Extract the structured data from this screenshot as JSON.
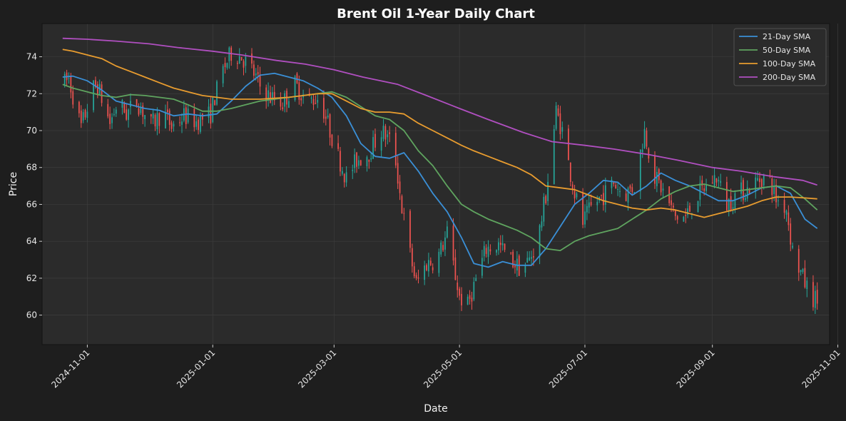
{
  "chart_data": {
    "type": "line",
    "title": "Brent Oil 1-Year Daily Chart",
    "xlabel": "Date",
    "ylabel": "Price",
    "x_range": [
      "2024-10-10",
      "2025-10-28"
    ],
    "ylim": [
      58.4,
      75.8
    ],
    "y_ticks": [
      60,
      62,
      64,
      66,
      68,
      70,
      72,
      74
    ],
    "x_ticks": [
      "2024-11-01",
      "2025-01-01",
      "2025-03-01",
      "2025-05-01",
      "2025-07-01",
      "2025-09-01",
      "2025-11-01"
    ],
    "grid": true,
    "legend_position": "top-right",
    "candlestick": {
      "up_color": "#26a69a",
      "down_color": "#ef5350",
      "anchors": [
        [
          "2024-10-21",
          72.6
        ],
        [
          "2024-10-23",
          72.8
        ],
        [
          "2024-10-27",
          71.0
        ],
        [
          "2024-10-29",
          70.2
        ],
        [
          "2024-11-04",
          72.3
        ],
        [
          "2024-11-06",
          72.4
        ],
        [
          "2024-11-12",
          70.4
        ],
        [
          "2024-11-16",
          71.6
        ],
        [
          "2024-11-20",
          70.9
        ],
        [
          "2024-11-25",
          71.6
        ],
        [
          "2024-12-02",
          70.3
        ],
        [
          "2024-12-08",
          71.0
        ],
        [
          "2024-12-12",
          70.2
        ],
        [
          "2024-12-18",
          70.8
        ],
        [
          "2024-12-24",
          70.5
        ],
        [
          "2024-12-31",
          70.9
        ],
        [
          "2025-01-02",
          71.8
        ],
        [
          "2025-01-06",
          73.3
        ],
        [
          "2025-01-10",
          74.2
        ],
        [
          "2025-01-15",
          74.0
        ],
        [
          "2025-01-20",
          73.3
        ],
        [
          "2025-01-24",
          72.4
        ],
        [
          "2025-01-29",
          71.8
        ],
        [
          "2025-02-04",
          71.5
        ],
        [
          "2025-02-10",
          72.5
        ],
        [
          "2025-02-16",
          71.6
        ],
        [
          "2025-02-22",
          71.8
        ],
        [
          "2025-02-27",
          70.0
        ],
        [
          "2025-03-03",
          68.6
        ],
        [
          "2025-03-07",
          67.4
        ],
        [
          "2025-03-12",
          68.4
        ],
        [
          "2025-03-18",
          68.8
        ],
        [
          "2025-03-24",
          70.0
        ],
        [
          "2025-03-30",
          69.2
        ],
        [
          "2025-04-03",
          65.8
        ],
        [
          "2025-04-07",
          63.3
        ],
        [
          "2025-04-10",
          61.7
        ],
        [
          "2025-04-15",
          62.8
        ],
        [
          "2025-04-20",
          63.0
        ],
        [
          "2025-04-25",
          64.4
        ],
        [
          "2025-05-01",
          61.0
        ],
        [
          "2025-05-05",
          60.5
        ],
        [
          "2025-05-08",
          61.6
        ],
        [
          "2025-05-14",
          63.6
        ],
        [
          "2025-05-20",
          63.8
        ],
        [
          "2025-05-26",
          63.0
        ],
        [
          "2025-05-31",
          62.5
        ],
        [
          "2025-06-04",
          63.0
        ],
        [
          "2025-06-08",
          64.0
        ],
        [
          "2025-06-12",
          66.5
        ],
        [
          "2025-06-17",
          71.0
        ],
        [
          "2025-06-20",
          70.0
        ],
        [
          "2025-06-23",
          68.2
        ],
        [
          "2025-06-26",
          66.6
        ],
        [
          "2025-06-30",
          65.0
        ],
        [
          "2025-07-05",
          66.0
        ],
        [
          "2025-07-10",
          66.5
        ],
        [
          "2025-07-15",
          67.2
        ],
        [
          "2025-07-20",
          66.5
        ],
        [
          "2025-07-25",
          67.0
        ],
        [
          "2025-07-30",
          70.0
        ],
        [
          "2025-08-04",
          67.5
        ],
        [
          "2025-08-09",
          66.5
        ],
        [
          "2025-08-14",
          65.3
        ],
        [
          "2025-08-19",
          65.3
        ],
        [
          "2025-08-24",
          66.4
        ],
        [
          "2025-08-29",
          67.0
        ],
        [
          "2025-09-03",
          67.5
        ],
        [
          "2025-09-08",
          66.0
        ],
        [
          "2025-09-13",
          66.6
        ],
        [
          "2025-09-18",
          66.8
        ],
        [
          "2025-09-23",
          67.3
        ],
        [
          "2025-09-28",
          67.6
        ],
        [
          "2025-10-02",
          66.3
        ],
        [
          "2025-10-07",
          65.8
        ],
        [
          "2025-10-10",
          63.5
        ],
        [
          "2025-10-15",
          62.0
        ],
        [
          "2025-10-19",
          61.0
        ],
        [
          "2025-10-22",
          60.8
        ]
      ]
    },
    "series": [
      {
        "name": "21-Day SMA",
        "color": "#3a8fd6",
        "points": [
          [
            "2024-10-20",
            72.9
          ],
          [
            "2024-10-25",
            72.95
          ],
          [
            "2024-11-01",
            72.7
          ],
          [
            "2024-11-08",
            72.2
          ],
          [
            "2024-11-15",
            71.6
          ],
          [
            "2024-11-22",
            71.4
          ],
          [
            "2024-11-29",
            71.2
          ],
          [
            "2024-12-06",
            71.1
          ],
          [
            "2024-12-13",
            70.8
          ],
          [
            "2024-12-20",
            70.9
          ],
          [
            "2024-12-27",
            70.8
          ],
          [
            "2025-01-03",
            70.9
          ],
          [
            "2025-01-10",
            71.6
          ],
          [
            "2025-01-17",
            72.4
          ],
          [
            "2025-01-24",
            73.0
          ],
          [
            "2025-01-31",
            73.1
          ],
          [
            "2025-02-07",
            72.9
          ],
          [
            "2025-02-14",
            72.7
          ],
          [
            "2025-02-21",
            72.3
          ],
          [
            "2025-02-28",
            71.8
          ],
          [
            "2025-03-07",
            70.8
          ],
          [
            "2025-03-14",
            69.3
          ],
          [
            "2025-03-21",
            68.6
          ],
          [
            "2025-03-28",
            68.5
          ],
          [
            "2025-04-04",
            68.8
          ],
          [
            "2025-04-11",
            67.8
          ],
          [
            "2025-04-18",
            66.6
          ],
          [
            "2025-04-25",
            65.6
          ],
          [
            "2025-05-02",
            64.2
          ],
          [
            "2025-05-08",
            62.8
          ],
          [
            "2025-05-15",
            62.6
          ],
          [
            "2025-05-22",
            62.9
          ],
          [
            "2025-05-29",
            62.7
          ],
          [
            "2025-06-05",
            62.7
          ],
          [
            "2025-06-12",
            63.6
          ],
          [
            "2025-06-19",
            64.8
          ],
          [
            "2025-06-26",
            66.0
          ],
          [
            "2025-07-03",
            66.6
          ],
          [
            "2025-07-10",
            67.3
          ],
          [
            "2025-07-17",
            67.2
          ],
          [
            "2025-07-24",
            66.5
          ],
          [
            "2025-07-31",
            67.0
          ],
          [
            "2025-08-07",
            67.7
          ],
          [
            "2025-08-14",
            67.3
          ],
          [
            "2025-08-21",
            67.0
          ],
          [
            "2025-08-28",
            66.6
          ],
          [
            "2025-09-04",
            66.2
          ],
          [
            "2025-09-11",
            66.2
          ],
          [
            "2025-09-18",
            66.5
          ],
          [
            "2025-09-25",
            66.9
          ],
          [
            "2025-10-02",
            67.0
          ],
          [
            "2025-10-09",
            66.6
          ],
          [
            "2025-10-16",
            65.2
          ],
          [
            "2025-10-22",
            64.7
          ]
        ]
      },
      {
        "name": "50-Day SMA",
        "color": "#5fa45f",
        "points": [
          [
            "2024-10-20",
            72.5
          ],
          [
            "2024-10-25",
            72.3
          ],
          [
            "2024-11-01",
            72.1
          ],
          [
            "2024-11-08",
            71.9
          ],
          [
            "2024-11-15",
            71.8
          ],
          [
            "2024-11-22",
            71.95
          ],
          [
            "2024-11-29",
            71.9
          ],
          [
            "2024-12-06",
            71.8
          ],
          [
            "2024-12-13",
            71.7
          ],
          [
            "2024-12-20",
            71.4
          ],
          [
            "2024-12-27",
            71.05
          ],
          [
            "2025-01-03",
            71.05
          ],
          [
            "2025-01-10",
            71.2
          ],
          [
            "2025-01-17",
            71.4
          ],
          [
            "2025-01-24",
            71.6
          ],
          [
            "2025-01-31",
            71.7
          ],
          [
            "2025-02-07",
            71.8
          ],
          [
            "2025-02-14",
            71.9
          ],
          [
            "2025-02-21",
            72.0
          ],
          [
            "2025-02-28",
            72.1
          ],
          [
            "2025-03-07",
            71.8
          ],
          [
            "2025-03-14",
            71.3
          ],
          [
            "2025-03-21",
            70.8
          ],
          [
            "2025-03-28",
            70.6
          ],
          [
            "2025-04-04",
            70.0
          ],
          [
            "2025-04-11",
            68.9
          ],
          [
            "2025-04-18",
            68.1
          ],
          [
            "2025-04-25",
            67.0
          ],
          [
            "2025-05-02",
            66.0
          ],
          [
            "2025-05-08",
            65.6
          ],
          [
            "2025-05-15",
            65.2
          ],
          [
            "2025-05-22",
            64.9
          ],
          [
            "2025-05-29",
            64.6
          ],
          [
            "2025-06-05",
            64.2
          ],
          [
            "2025-06-12",
            63.6
          ],
          [
            "2025-06-19",
            63.5
          ],
          [
            "2025-06-26",
            64.0
          ],
          [
            "2025-07-03",
            64.3
          ],
          [
            "2025-07-10",
            64.5
          ],
          [
            "2025-07-17",
            64.7
          ],
          [
            "2025-07-24",
            65.2
          ],
          [
            "2025-07-31",
            65.7
          ],
          [
            "2025-08-07",
            66.3
          ],
          [
            "2025-08-14",
            66.7
          ],
          [
            "2025-08-21",
            67.0
          ],
          [
            "2025-08-28",
            67.1
          ],
          [
            "2025-09-04",
            66.9
          ],
          [
            "2025-09-11",
            66.7
          ],
          [
            "2025-09-18",
            66.8
          ],
          [
            "2025-09-25",
            66.9
          ],
          [
            "2025-10-02",
            67.0
          ],
          [
            "2025-10-09",
            66.9
          ],
          [
            "2025-10-16",
            66.3
          ],
          [
            "2025-10-22",
            65.7
          ]
        ]
      },
      {
        "name": "100-Day SMA",
        "color": "#e89c2f",
        "points": [
          [
            "2024-10-20",
            74.4
          ],
          [
            "2024-10-25",
            74.3
          ],
          [
            "2024-11-01",
            74.1
          ],
          [
            "2024-11-08",
            73.9
          ],
          [
            "2024-11-15",
            73.5
          ],
          [
            "2024-11-22",
            73.2
          ],
          [
            "2024-11-29",
            72.9
          ],
          [
            "2024-12-06",
            72.6
          ],
          [
            "2024-12-13",
            72.3
          ],
          [
            "2024-12-20",
            72.1
          ],
          [
            "2024-12-27",
            71.9
          ],
          [
            "2025-01-03",
            71.8
          ],
          [
            "2025-01-10",
            71.7
          ],
          [
            "2025-01-17",
            71.7
          ],
          [
            "2025-01-24",
            71.7
          ],
          [
            "2025-01-31",
            71.75
          ],
          [
            "2025-02-07",
            71.8
          ],
          [
            "2025-02-14",
            71.9
          ],
          [
            "2025-02-21",
            72.0
          ],
          [
            "2025-02-28",
            72.0
          ],
          [
            "2025-03-07",
            71.6
          ],
          [
            "2025-03-14",
            71.2
          ],
          [
            "2025-03-21",
            71.0
          ],
          [
            "2025-03-28",
            71.0
          ],
          [
            "2025-04-04",
            70.9
          ],
          [
            "2025-04-11",
            70.4
          ],
          [
            "2025-04-18",
            70.0
          ],
          [
            "2025-04-25",
            69.6
          ],
          [
            "2025-05-02",
            69.2
          ],
          [
            "2025-05-08",
            68.9
          ],
          [
            "2025-05-15",
            68.6
          ],
          [
            "2025-05-22",
            68.3
          ],
          [
            "2025-05-29",
            68.0
          ],
          [
            "2025-06-05",
            67.6
          ],
          [
            "2025-06-12",
            67.0
          ],
          [
            "2025-06-19",
            66.9
          ],
          [
            "2025-06-26",
            66.8
          ],
          [
            "2025-07-03",
            66.5
          ],
          [
            "2025-07-10",
            66.2
          ],
          [
            "2025-07-17",
            66.0
          ],
          [
            "2025-07-24",
            65.8
          ],
          [
            "2025-07-31",
            65.7
          ],
          [
            "2025-08-07",
            65.8
          ],
          [
            "2025-08-14",
            65.7
          ],
          [
            "2025-08-21",
            65.5
          ],
          [
            "2025-08-28",
            65.3
          ],
          [
            "2025-09-04",
            65.5
          ],
          [
            "2025-09-11",
            65.7
          ],
          [
            "2025-09-18",
            65.9
          ],
          [
            "2025-09-25",
            66.2
          ],
          [
            "2025-10-02",
            66.4
          ],
          [
            "2025-10-09",
            66.4
          ],
          [
            "2025-10-16",
            66.35
          ],
          [
            "2025-10-22",
            66.3
          ]
        ]
      },
      {
        "name": "200-Day SMA",
        "color": "#b04fc0",
        "points": [
          [
            "2024-10-20",
            75.0
          ],
          [
            "2024-11-01",
            74.95
          ],
          [
            "2024-11-15",
            74.85
          ],
          [
            "2024-12-01",
            74.7
          ],
          [
            "2024-12-15",
            74.5
          ],
          [
            "2025-01-01",
            74.3
          ],
          [
            "2025-01-15",
            74.1
          ],
          [
            "2025-02-01",
            73.8
          ],
          [
            "2025-02-15",
            73.6
          ],
          [
            "2025-03-01",
            73.3
          ],
          [
            "2025-03-15",
            72.9
          ],
          [
            "2025-04-01",
            72.5
          ],
          [
            "2025-04-15",
            71.9
          ],
          [
            "2025-05-01",
            71.2
          ],
          [
            "2025-05-15",
            70.6
          ],
          [
            "2025-06-01",
            69.9
          ],
          [
            "2025-06-15",
            69.4
          ],
          [
            "2025-07-01",
            69.2
          ],
          [
            "2025-07-15",
            69.0
          ],
          [
            "2025-08-01",
            68.7
          ],
          [
            "2025-08-15",
            68.4
          ],
          [
            "2025-09-01",
            68.0
          ],
          [
            "2025-09-15",
            67.8
          ],
          [
            "2025-10-01",
            67.5
          ],
          [
            "2025-10-15",
            67.3
          ],
          [
            "2025-10-22",
            67.05
          ]
        ]
      }
    ]
  }
}
